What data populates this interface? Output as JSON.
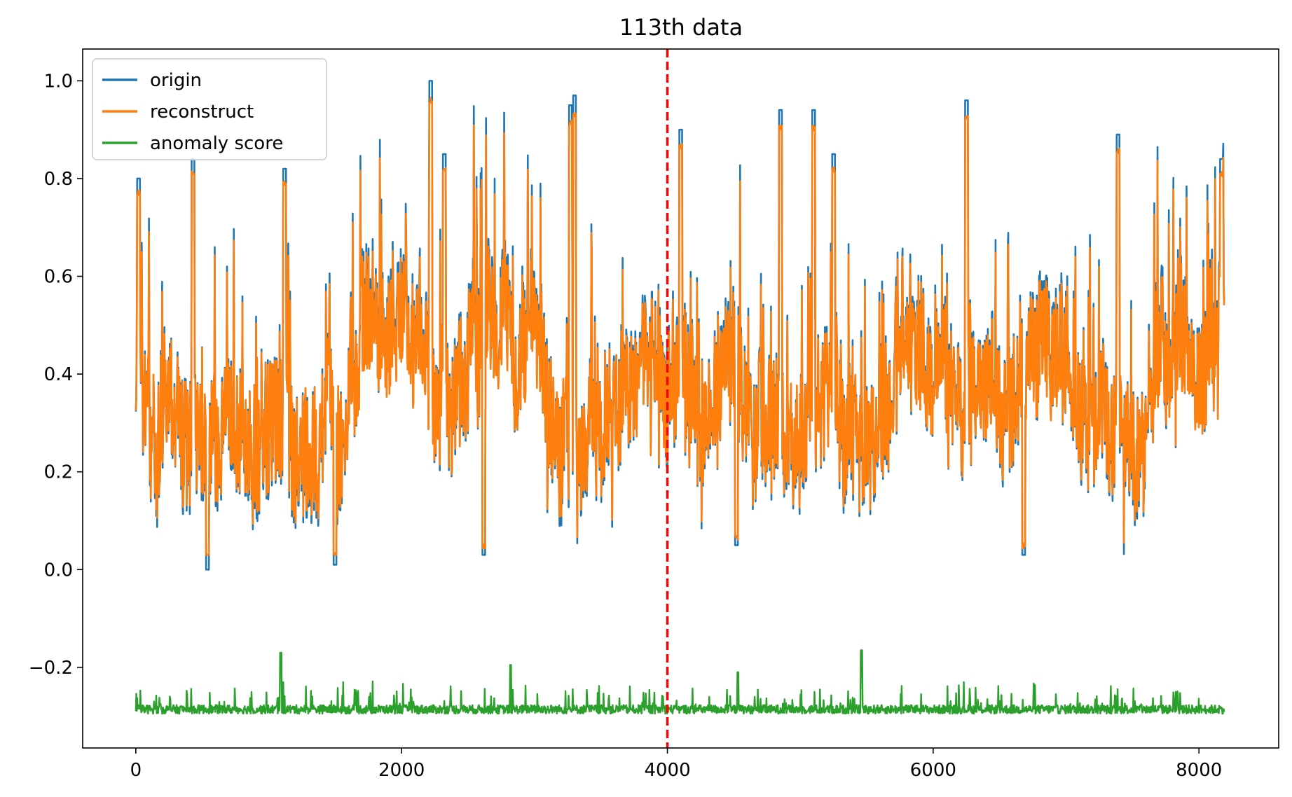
{
  "chart_data": {
    "type": "line",
    "title": "113th data",
    "xlabel": "",
    "ylabel": "",
    "xlim": [
      -400,
      8600
    ],
    "ylim": [
      -0.365,
      1.065
    ],
    "x_ticks": [
      0,
      2000,
      4000,
      6000,
      8000
    ],
    "x_tick_labels": [
      "0",
      "2000",
      "4000",
      "6000",
      "8000"
    ],
    "y_ticks": [
      -0.2,
      0.0,
      0.2,
      0.4,
      0.6,
      0.8,
      1.0
    ],
    "y_tick_labels": [
      "−0.2",
      "0.0",
      "0.2",
      "0.4",
      "0.6",
      "0.8",
      "1.0"
    ],
    "grid": false,
    "legend_position": "top-left",
    "n_points": 8190,
    "series": [
      {
        "name": "origin",
        "color": "#1f77b4",
        "x_range": [
          0,
          8190
        ],
        "value_range": [
          0.0,
          1.0
        ],
        "typical_low": 0.25,
        "typical_high": 0.45,
        "peaks": [
          {
            "x": 20,
            "y": 0.8
          },
          {
            "x": 430,
            "y": 0.84
          },
          {
            "x": 540,
            "y": 0.0
          },
          {
            "x": 1120,
            "y": 0.82
          },
          {
            "x": 1500,
            "y": 0.01
          },
          {
            "x": 2220,
            "y": 1.0
          },
          {
            "x": 2320,
            "y": 0.85
          },
          {
            "x": 2620,
            "y": 0.03
          },
          {
            "x": 3270,
            "y": 0.95
          },
          {
            "x": 3300,
            "y": 0.97
          },
          {
            "x": 4100,
            "y": 0.9
          },
          {
            "x": 4520,
            "y": 0.05
          },
          {
            "x": 4850,
            "y": 0.94
          },
          {
            "x": 5100,
            "y": 0.94
          },
          {
            "x": 5250,
            "y": 0.85
          },
          {
            "x": 6250,
            "y": 0.96
          },
          {
            "x": 6680,
            "y": 0.03
          },
          {
            "x": 7390,
            "y": 0.89
          },
          {
            "x": 8170,
            "y": 0.84
          }
        ]
      },
      {
        "name": "reconstruct",
        "color": "#ff7f0e",
        "x_range": [
          0,
          8190
        ],
        "value_range": [
          0.03,
          0.99
        ],
        "typical_low": 0.25,
        "typical_high": 0.45
      },
      {
        "name": "anomaly score",
        "color": "#2ca02c",
        "x_range": [
          0,
          8190
        ],
        "value_range": [
          -0.3,
          -0.165
        ],
        "baseline": -0.295,
        "spikes": [
          {
            "x": 1090,
            "y": -0.17
          },
          {
            "x": 2820,
            "y": -0.195
          },
          {
            "x": 5460,
            "y": -0.165
          },
          {
            "x": 4530,
            "y": -0.21
          }
        ]
      }
    ],
    "annotations": [
      {
        "type": "vertical-line",
        "x": 4000,
        "style": "dashed",
        "color": "#ff0000"
      }
    ]
  }
}
